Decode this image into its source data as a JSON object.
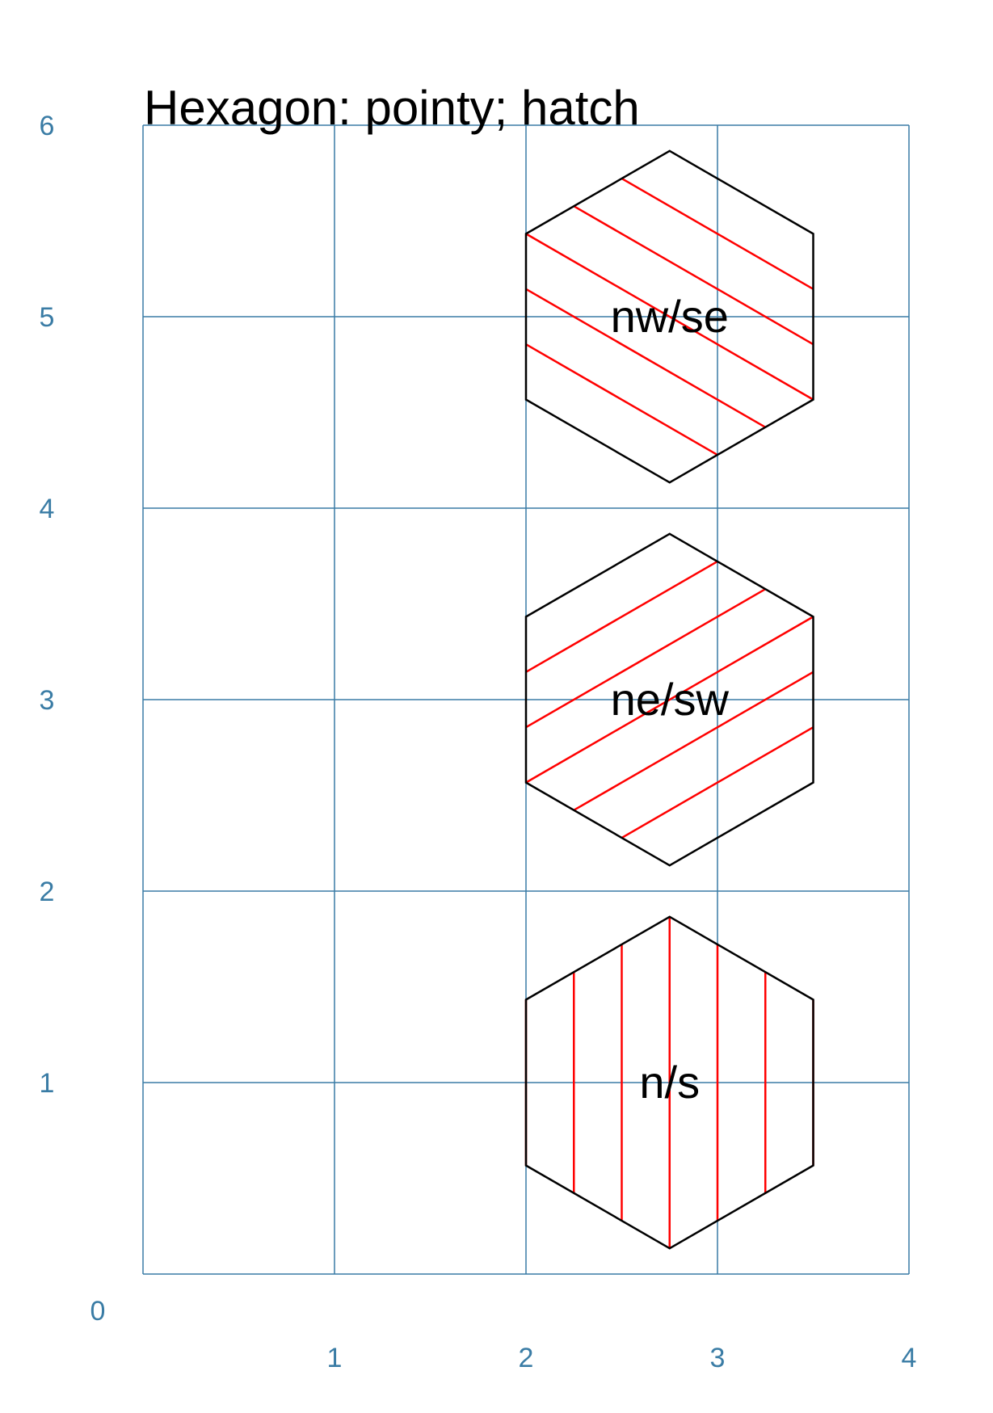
{
  "title": "Hexagon: pointy; hatch",
  "colors": {
    "grid": "#3a7ca5",
    "axis_text": "#3a7ca5",
    "outline": "#000000",
    "hatch": "#ff0000"
  },
  "axis": {
    "origin_label": "0",
    "x_labels": [
      "1",
      "2",
      "3",
      "4"
    ],
    "y_labels": [
      "1",
      "2",
      "3",
      "4",
      "5",
      "6"
    ]
  },
  "hexagons": [
    {
      "label": "nw/se",
      "hatch": "nw/se"
    },
    {
      "label": "ne/sw",
      "hatch": "ne/sw"
    },
    {
      "label": "n/s",
      "hatch": "n/s"
    }
  ]
}
